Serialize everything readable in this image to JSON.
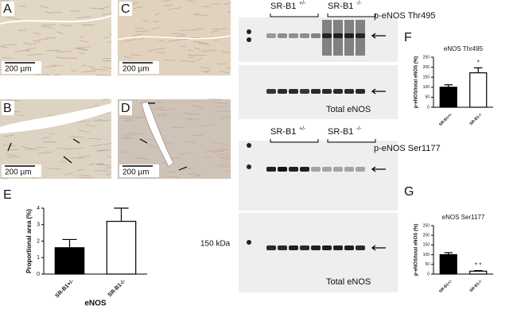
{
  "figure": {
    "panels": [
      "A",
      "B",
      "C",
      "D",
      "E",
      "F",
      "G"
    ],
    "scale_bars": [
      "200 µm",
      "200 µm",
      "200 µm",
      "200 µm"
    ],
    "groups": [
      {
        "name": "SR-B1",
        "genotype": "+/-"
      },
      {
        "name": "SR-B1",
        "genotype": "-/-"
      },
      {
        "name": "SR-B1",
        "genotype": "+/-"
      },
      {
        "name": "SR-B1",
        "genotype": "-/-"
      }
    ],
    "blot_labels": [
      "p-eNOS Thr495",
      "Total eNOS",
      "p-eNOS Ser1177",
      "Total eNOS"
    ],
    "marker": "150 kDa"
  },
  "chart_data": [
    {
      "type": "bar",
      "y_label": "Proportional area (%)",
      "x_label": "eNOS",
      "categories": [
        "SR-B1+/-",
        "SR-B1-/-"
      ],
      "values": [
        1.6,
        3.2
      ],
      "errors": [
        0.5,
        0.8
      ],
      "colors": [
        "#000000",
        "#ffffff"
      ],
      "ylim": [
        0,
        4
      ],
      "yticks": [
        0,
        1,
        2,
        3,
        4
      ]
    },
    {
      "type": "bar",
      "title": "eNOS Thr495",
      "y_label": "p-eNOS/total eNOS (%)",
      "categories": [
        "SR-B1+/-",
        "SR-B1-/-"
      ],
      "values": [
        100,
        172
      ],
      "errors": [
        12,
        25
      ],
      "colors": [
        "#000000",
        "#ffffff"
      ],
      "ylim": [
        0,
        250
      ],
      "yticks": [
        0,
        50,
        100,
        150,
        200,
        250
      ],
      "annotation": "*"
    },
    {
      "type": "bar",
      "title": "eNOS Ser1177",
      "y_label": "p-eNOS/total eNOS (%)",
      "categories": [
        "SR-B1+/-",
        "SR-B1-/-"
      ],
      "values": [
        100,
        15
      ],
      "errors": [
        10,
        3
      ],
      "colors": [
        "#000000",
        "#ffffff"
      ],
      "ylim": [
        0,
        250
      ],
      "yticks": [
        0,
        50,
        100,
        150,
        200,
        250
      ],
      "annotation": "* *"
    }
  ]
}
